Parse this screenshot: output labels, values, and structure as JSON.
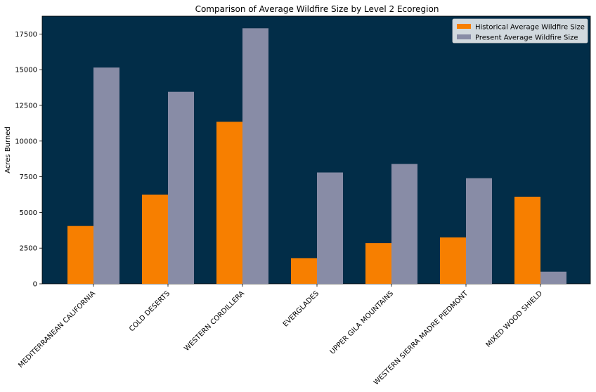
{
  "chart_data": {
    "type": "bar",
    "title": "Comparison of Average Wildfire Size by Level 2 Ecoregion",
    "xlabel": "",
    "ylabel": "Acres Burned",
    "categories": [
      "MEDITERRANEAN CALIFORNIA",
      "COLD DESERTS",
      "WESTERN CORDILLERA",
      "EVERGLADES",
      "UPPER GILA MOUNTAINS",
      "WESTERN SIERRA MADRE PIEDMONT",
      "MIXED WOOD SHIELD"
    ],
    "series": [
      {
        "name": "Historical Average Wildfire Size",
        "color": "#f77f00",
        "values": [
          4050,
          6250,
          11350,
          1800,
          2850,
          3250,
          6100
        ]
      },
      {
        "name": "Present Average Wildfire Size",
        "color": "#888ca6",
        "values": [
          15150,
          13450,
          17900,
          7800,
          8400,
          7400,
          850
        ]
      }
    ],
    "ylim": [
      0,
      18750
    ],
    "yticks": [
      0,
      2500,
      5000,
      7500,
      10000,
      12500,
      15000,
      17500
    ],
    "ytick_labels": [
      "0",
      "2500",
      "5000",
      "7500",
      "10000",
      "12500",
      "15000",
      "17500"
    ],
    "grid": false,
    "legend_position": "top-right",
    "plot_background": "#022d48"
  }
}
